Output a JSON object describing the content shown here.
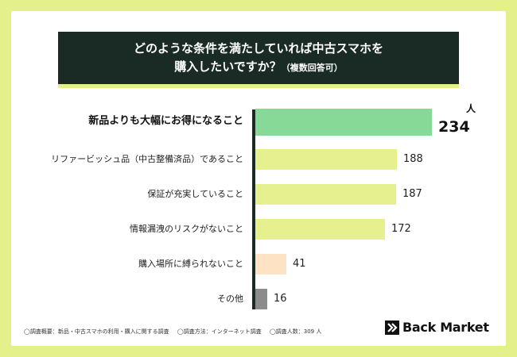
{
  "title": {
    "line1": "どのような条件を満たしていれば中古スマホを",
    "line2": "購入したいですか？",
    "note": "（複数回答可）"
  },
  "chart_data": {
    "type": "bar",
    "orientation": "horizontal",
    "unit": "人",
    "categories": [
      "新品よりも大幅にお得になること",
      "リファービッシュ品（中古整備済品）であること",
      "保証が充実していること",
      "情報漏洩のリスクがないこと",
      "購入場所に縛られないこと",
      "その他"
    ],
    "values": [
      234,
      188,
      187,
      172,
      41,
      16
    ],
    "colors": [
      "#86d996",
      "#e6f08e",
      "#e6f08e",
      "#e6f08e",
      "#fde3c3",
      "#8c8c8c"
    ],
    "highlight_index": 0,
    "xlim": [
      0,
      234
    ]
  },
  "footnotes": {
    "survey_overview": "◯調査概要：新品・中古スマホの利用・購入に関する調査",
    "survey_method": "◯調査方法：インターネット調査",
    "survey_count": "◯調査人数：309 人"
  },
  "brand": {
    "name": "Back Market"
  }
}
